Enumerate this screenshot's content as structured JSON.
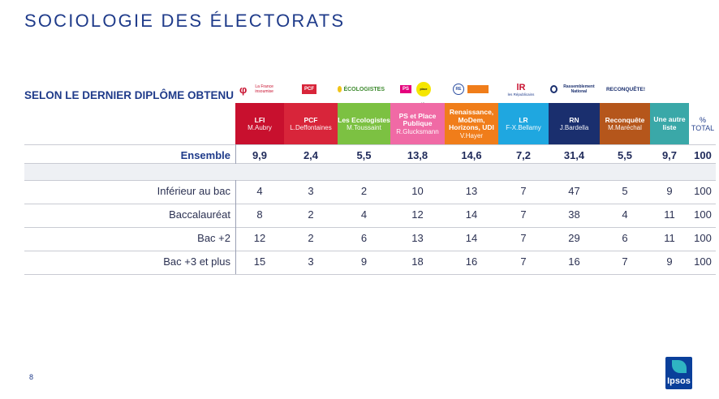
{
  "slide": {
    "title": "SOCIOLOGIE DES ÉLECTORATS",
    "subtitle": "SELON LE DERNIER DIPLÔME OBTENU",
    "page_number": "8",
    "brand": "Ipsos"
  },
  "logos": {
    "lfi": "La France insoumise",
    "pcf": "PCF",
    "eco": "ÉCOLOGISTES",
    "ps": "PS",
    "ps2": "place publique",
    "ren": "RE",
    "lr": "les Républicains",
    "rn": "Rassemblement National",
    "rec": "RECONQUÊTE!"
  },
  "columns": [
    {
      "party": "LFI",
      "candidate": "M.Aubry",
      "color": "#c8102e"
    },
    {
      "party": "PCF",
      "candidate": "L.Deffontaines",
      "color": "#d8253a"
    },
    {
      "party": "Les Ecologistes",
      "candidate": "M.Toussaint",
      "color": "#7cc142"
    },
    {
      "party": "PS et Place Publique",
      "candidate": "R.Glucksmann",
      "color": "#f06aa5"
    },
    {
      "party": "Renaissance, MoDem, Horizons, UDI",
      "candidate": "V.Hayer",
      "color": "#f07d1a"
    },
    {
      "party": "LR",
      "candidate": "F-X.Bellamy",
      "color": "#1fa7e0"
    },
    {
      "party": "RN",
      "candidate": "J.Bardella",
      "color": "#1a2f6e"
    },
    {
      "party": "Reconquête",
      "candidate": "M.Maréchal",
      "color": "#b5561b"
    },
    {
      "party": "Une autre liste",
      "candidate": "",
      "color": "#3aa8a8"
    },
    {
      "party": "%",
      "candidate": "TOTAL",
      "color": "#ffffff"
    }
  ],
  "rows": [
    {
      "label": "Ensemble",
      "values": [
        "9,9",
        "2,4",
        "5,5",
        "13,8",
        "14,6",
        "7,2",
        "31,4",
        "5,5",
        "9,7",
        "100"
      ]
    },
    {
      "label": "Inférieur au bac",
      "values": [
        "4",
        "3",
        "2",
        "10",
        "13",
        "7",
        "47",
        "5",
        "9",
        "100"
      ]
    },
    {
      "label": "Baccalauréat",
      "values": [
        "8",
        "2",
        "4",
        "12",
        "14",
        "7",
        "38",
        "4",
        "11",
        "100"
      ]
    },
    {
      "label": "Bac +2",
      "values": [
        "12",
        "2",
        "6",
        "13",
        "14",
        "7",
        "29",
        "6",
        "11",
        "100"
      ]
    },
    {
      "label": "Bac +3 et plus",
      "values": [
        "15",
        "3",
        "9",
        "18",
        "16",
        "7",
        "16",
        "7",
        "9",
        "100"
      ]
    }
  ]
}
